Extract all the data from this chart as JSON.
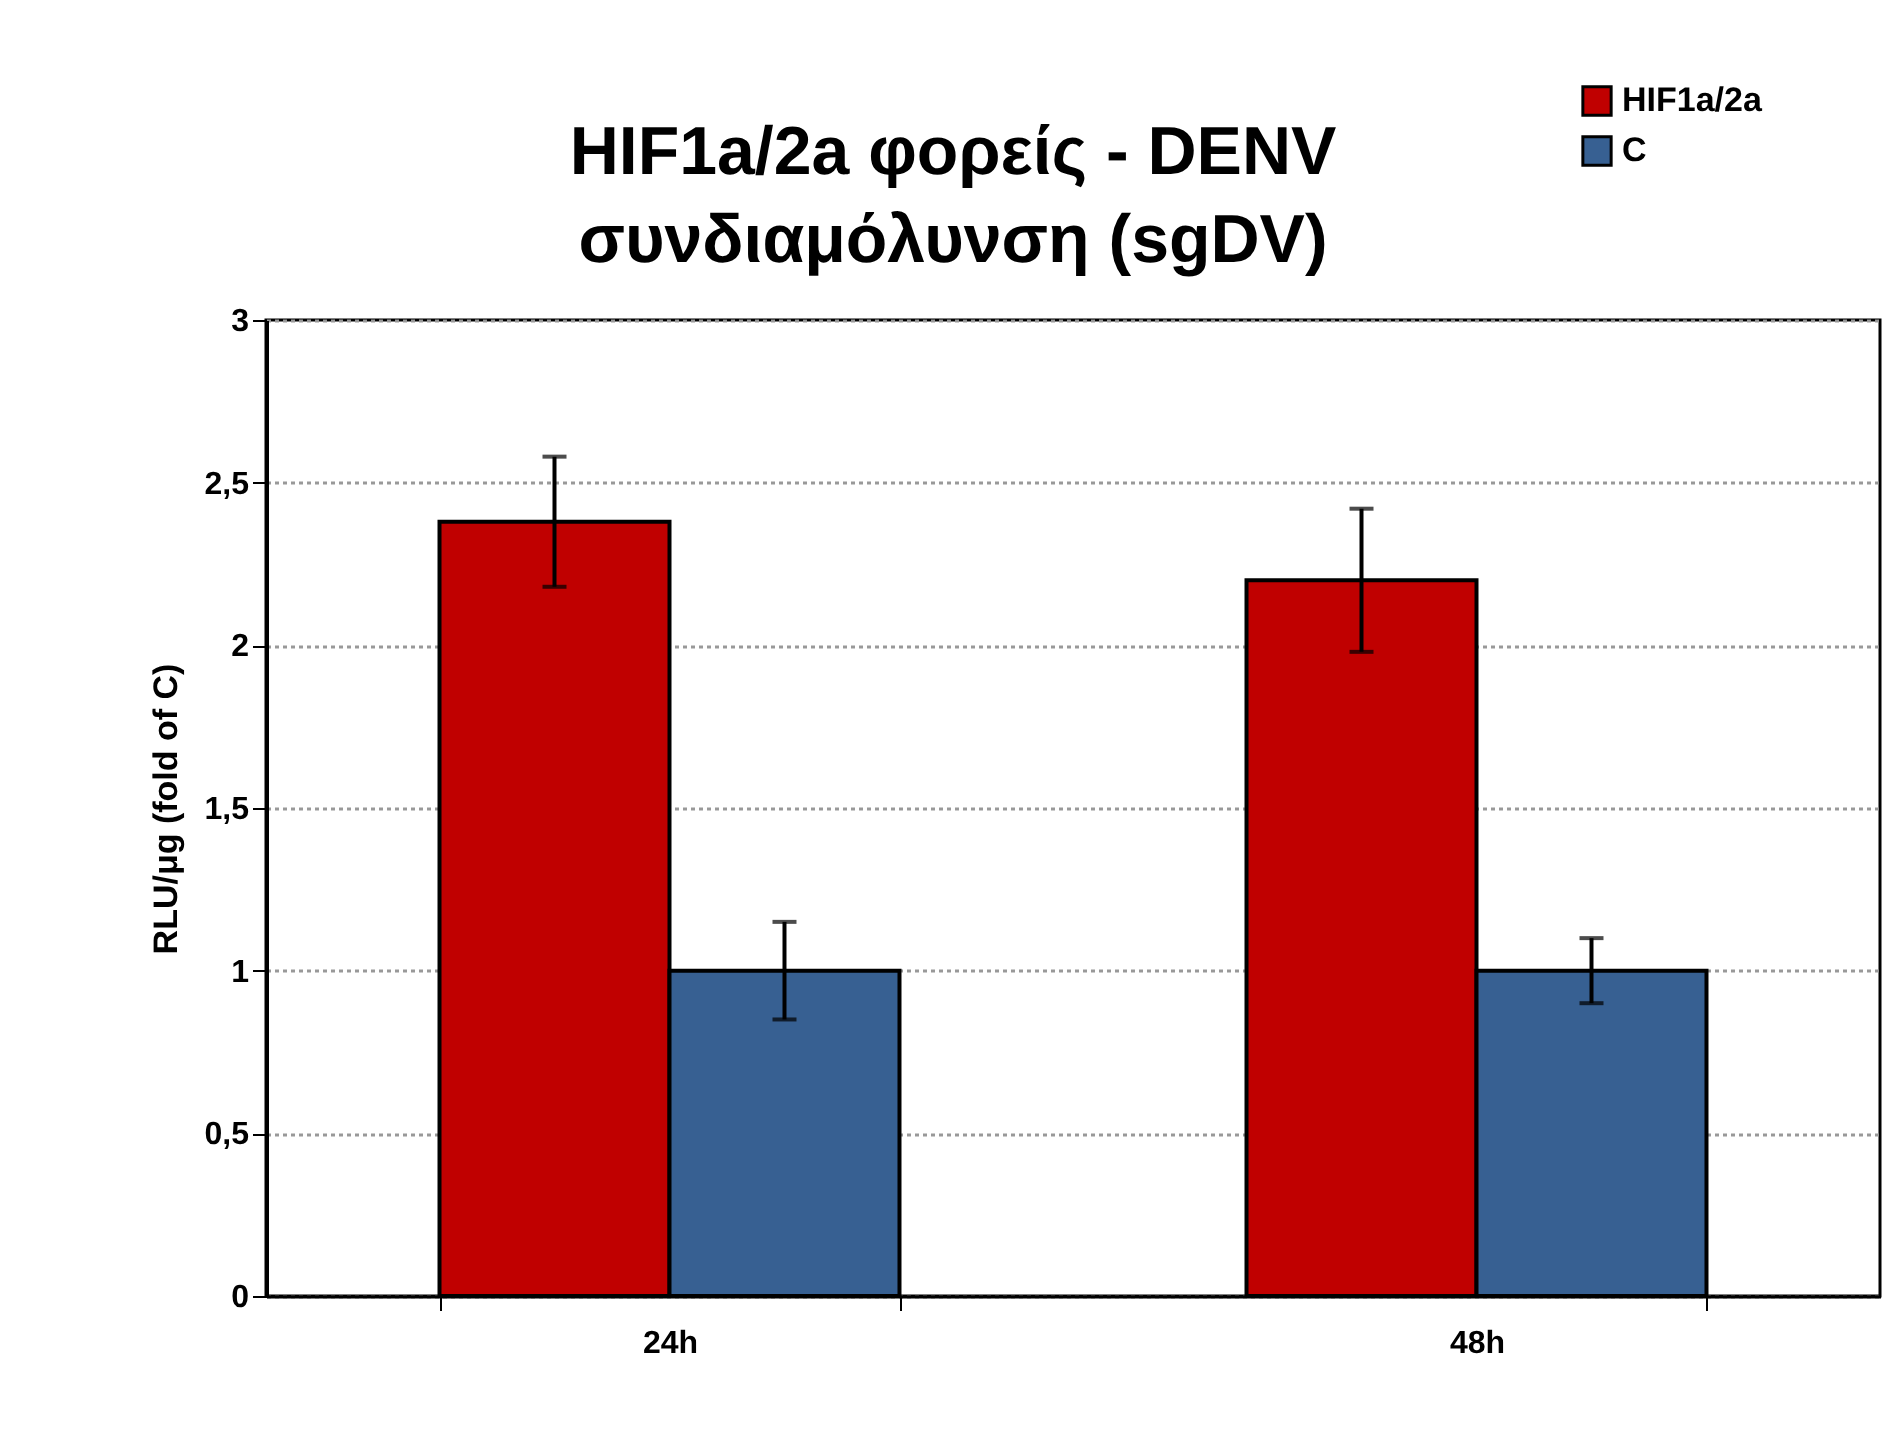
{
  "chart_data": {
    "type": "bar",
    "title": "HIF1a/2a φορείς - DENV\nσυνδιαμόλυνση (sgDV)",
    "ylabel": "RLU/μg (fold of C)",
    "categories": [
      "24h",
      "48h"
    ],
    "series": [
      {
        "name": "HIF1a/2a",
        "color": "#c00000",
        "values": [
          2.38,
          2.2
        ],
        "errors": [
          0.2,
          0.22
        ]
      },
      {
        "name": "C",
        "color": "#376092",
        "values": [
          1,
          1
        ],
        "errors": [
          0.15,
          0.1
        ]
      }
    ],
    "ylim": [
      0,
      3
    ],
    "yticks": [
      0,
      {
        "value": 0.5,
        "label": "0,5"
      },
      1,
      {
        "value": 1.5,
        "label": "1,5"
      },
      2,
      {
        "value": 2.5,
        "label": "2,5"
      },
      3
    ],
    "grid": "y",
    "legend": "top right"
  }
}
